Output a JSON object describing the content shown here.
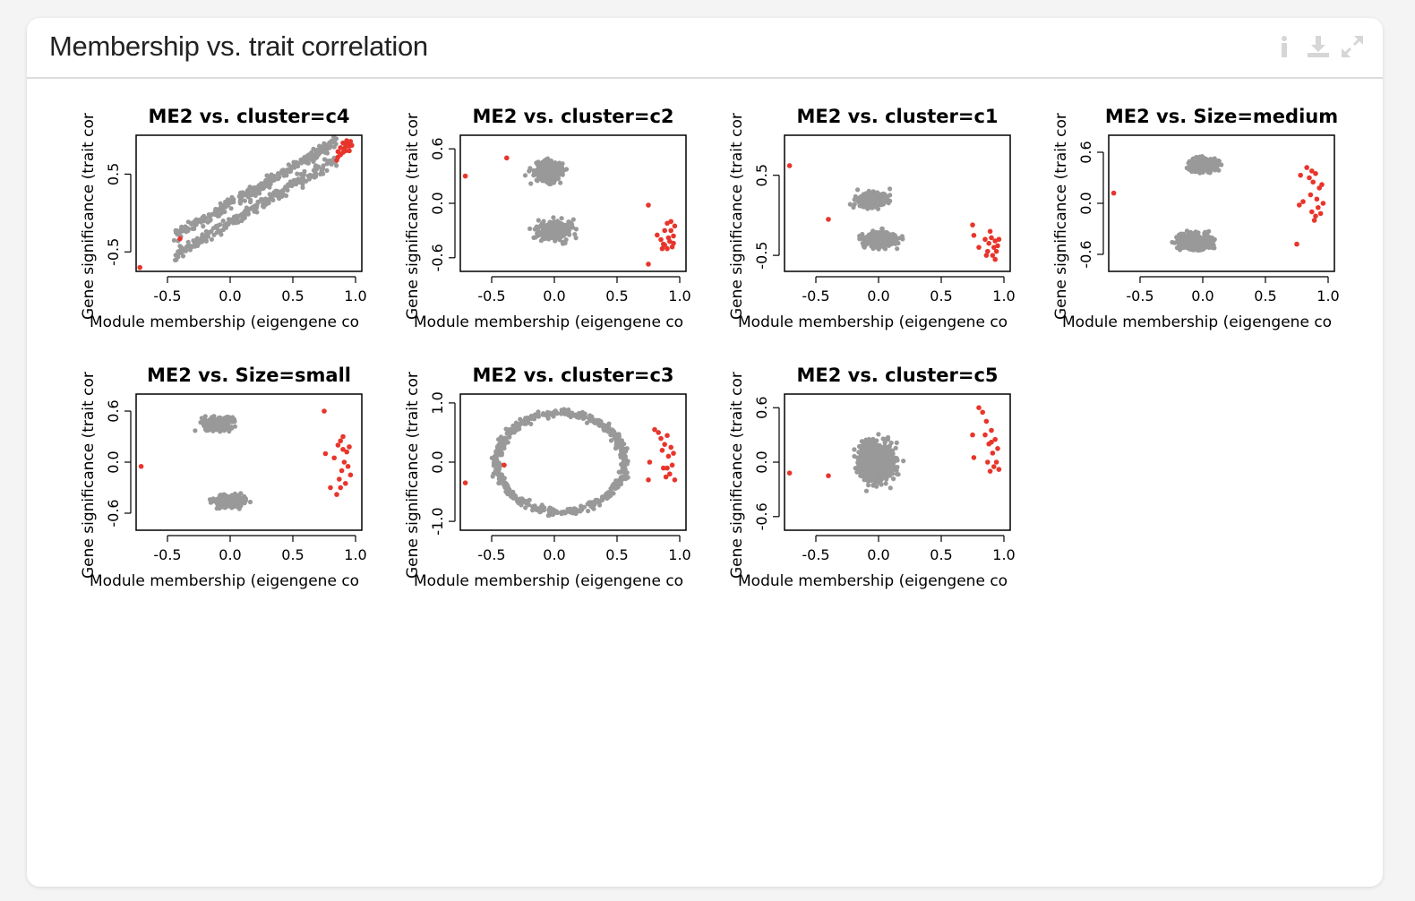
{
  "card": {
    "title": "Membership vs. trait correlation",
    "icons": [
      "info-icon",
      "download-icon",
      "expand-icon"
    ]
  },
  "colors": {
    "points": "#999999",
    "highlight": "#e8352b"
  },
  "common": {
    "xlabel": "Module membership (eigengene co",
    "ylabel": "Gene significance (trait cor",
    "xlim": [
      -0.75,
      1.05
    ],
    "xticks": [
      -0.5,
      0.0,
      0.5,
      1.0
    ]
  },
  "chart_data": [
    {
      "type": "scatter",
      "title": "ME2 vs. cluster=c4",
      "ylim": [
        -0.75,
        1.0
      ],
      "yticks": [
        -0.5,
        0.5
      ],
      "highlight": [
        [
          -0.72,
          -0.7
        ],
        [
          -0.4,
          -0.33
        ],
        [
          0.85,
          0.68
        ],
        [
          0.86,
          0.72
        ],
        [
          0.88,
          0.75
        ],
        [
          0.9,
          0.78
        ],
        [
          0.91,
          0.82
        ],
        [
          0.92,
          0.85
        ],
        [
          0.93,
          0.88
        ],
        [
          0.94,
          0.9
        ],
        [
          0.95,
          0.86
        ],
        [
          0.92,
          0.8
        ],
        [
          0.9,
          0.9
        ],
        [
          0.96,
          0.92
        ],
        [
          0.88,
          0.84
        ],
        [
          0.86,
          0.79
        ],
        [
          0.95,
          0.8
        ],
        [
          0.93,
          0.93
        ],
        [
          0.97,
          0.87
        ]
      ]
    },
    {
      "type": "scatter",
      "title": "ME2 vs. cluster=c2",
      "ylim": [
        -0.75,
        0.75
      ],
      "yticks": [
        -0.6,
        0.0,
        0.6
      ],
      "highlight": [
        [
          -0.71,
          0.3
        ],
        [
          -0.38,
          0.5
        ],
        [
          0.75,
          -0.02
        ],
        [
          0.75,
          -0.67
        ],
        [
          0.82,
          -0.35
        ],
        [
          0.85,
          -0.4
        ],
        [
          0.87,
          -0.45
        ],
        [
          0.88,
          -0.3
        ],
        [
          0.9,
          -0.5
        ],
        [
          0.91,
          -0.38
        ],
        [
          0.92,
          -0.42
        ],
        [
          0.93,
          -0.3
        ],
        [
          0.94,
          -0.48
        ],
        [
          0.95,
          -0.36
        ],
        [
          0.96,
          -0.25
        ],
        [
          0.9,
          -0.22
        ],
        [
          0.88,
          -0.46
        ],
        [
          0.93,
          -0.2
        ],
        [
          0.86,
          -0.5
        ],
        [
          0.95,
          -0.44
        ]
      ]
    },
    {
      "type": "scatter",
      "title": "ME2 vs. cluster=c1",
      "ylim": [
        -0.7,
        1.0
      ],
      "yticks": [
        -0.5,
        0.5
      ],
      "highlight": [
        [
          -0.71,
          0.62
        ],
        [
          -0.4,
          -0.05
        ],
        [
          0.75,
          -0.12
        ],
        [
          0.76,
          -0.25
        ],
        [
          0.8,
          -0.4
        ],
        [
          0.85,
          -0.3
        ],
        [
          0.87,
          -0.45
        ],
        [
          0.88,
          -0.35
        ],
        [
          0.9,
          -0.28
        ],
        [
          0.91,
          -0.5
        ],
        [
          0.92,
          -0.4
        ],
        [
          0.93,
          -0.32
        ],
        [
          0.94,
          -0.45
        ],
        [
          0.95,
          -0.38
        ],
        [
          0.89,
          -0.2
        ],
        [
          0.96,
          -0.3
        ],
        [
          0.86,
          -0.5
        ],
        [
          0.93,
          -0.55
        ]
      ]
    },
    {
      "type": "scatter",
      "title": "ME2 vs. Size=medium",
      "ylim": [
        -0.8,
        0.8
      ],
      "yticks": [
        -0.6,
        0.0,
        0.6
      ],
      "highlight": [
        [
          -0.71,
          0.12
        ],
        [
          0.75,
          -0.48
        ],
        [
          0.77,
          -0.02
        ],
        [
          0.78,
          0.33
        ],
        [
          0.8,
          0.02
        ],
        [
          0.83,
          0.42
        ],
        [
          0.85,
          0.3
        ],
        [
          0.86,
          0.1
        ],
        [
          0.87,
          -0.1
        ],
        [
          0.88,
          0.25
        ],
        [
          0.89,
          -0.2
        ],
        [
          0.9,
          0.35
        ],
        [
          0.91,
          0.05
        ],
        [
          0.92,
          -0.05
        ],
        [
          0.93,
          0.18
        ],
        [
          0.94,
          -0.12
        ],
        [
          0.95,
          0.22
        ],
        [
          0.96,
          0.0
        ],
        [
          0.9,
          -0.15
        ],
        [
          0.87,
          0.38
        ]
      ]
    },
    {
      "type": "scatter",
      "title": "ME2 vs. Size=small",
      "ylim": [
        -0.8,
        0.8
      ],
      "yticks": [
        -0.6,
        0.0,
        0.6
      ],
      "highlight": [
        [
          -0.71,
          -0.05
        ],
        [
          0.75,
          0.6
        ],
        [
          0.76,
          0.1
        ],
        [
          0.8,
          -0.3
        ],
        [
          0.83,
          0.05
        ],
        [
          0.85,
          -0.38
        ],
        [
          0.86,
          0.2
        ],
        [
          0.87,
          -0.2
        ],
        [
          0.88,
          0.25
        ],
        [
          0.89,
          -0.1
        ],
        [
          0.9,
          0.3
        ],
        [
          0.91,
          0.0
        ],
        [
          0.92,
          -0.25
        ],
        [
          0.93,
          0.12
        ],
        [
          0.94,
          -0.05
        ],
        [
          0.95,
          0.18
        ],
        [
          0.96,
          -0.15
        ],
        [
          0.9,
          0.15
        ],
        [
          0.88,
          -0.3
        ]
      ]
    },
    {
      "type": "scatter",
      "title": "ME2 vs. cluster=c3",
      "ylim": [
        -1.15,
        1.15
      ],
      "yticks": [
        -1.0,
        0.0,
        1.0
      ],
      "highlight": [
        [
          -0.71,
          -0.35
        ],
        [
          -0.4,
          -0.05
        ],
        [
          0.75,
          -0.3
        ],
        [
          0.76,
          0.0
        ],
        [
          0.8,
          0.55
        ],
        [
          0.83,
          0.5
        ],
        [
          0.85,
          0.4
        ],
        [
          0.86,
          0.2
        ],
        [
          0.87,
          -0.1
        ],
        [
          0.88,
          0.3
        ],
        [
          0.89,
          -0.25
        ],
        [
          0.9,
          0.45
        ],
        [
          0.91,
          0.1
        ],
        [
          0.92,
          -0.2
        ],
        [
          0.93,
          0.25
        ],
        [
          0.94,
          -0.05
        ],
        [
          0.95,
          0.15
        ],
        [
          0.96,
          -0.3
        ],
        [
          0.9,
          -0.1
        ]
      ]
    },
    {
      "type": "scatter",
      "title": "ME2 vs. cluster=c5",
      "ylim": [
        -0.75,
        0.75
      ],
      "yticks": [
        -0.6,
        0.0,
        0.6
      ],
      "highlight": [
        [
          -0.71,
          -0.12
        ],
        [
          -0.4,
          -0.15
        ],
        [
          0.75,
          0.3
        ],
        [
          0.76,
          0.05
        ],
        [
          0.8,
          0.6
        ],
        [
          0.83,
          0.55
        ],
        [
          0.85,
          0.3
        ],
        [
          0.86,
          0.45
        ],
        [
          0.87,
          0.0
        ],
        [
          0.88,
          0.2
        ],
        [
          0.89,
          -0.1
        ],
        [
          0.9,
          0.35
        ],
        [
          0.91,
          0.1
        ],
        [
          0.92,
          -0.05
        ],
        [
          0.93,
          0.25
        ],
        [
          0.94,
          0.0
        ],
        [
          0.95,
          0.15
        ],
        [
          0.96,
          -0.08
        ],
        [
          0.9,
          0.22
        ]
      ]
    }
  ]
}
